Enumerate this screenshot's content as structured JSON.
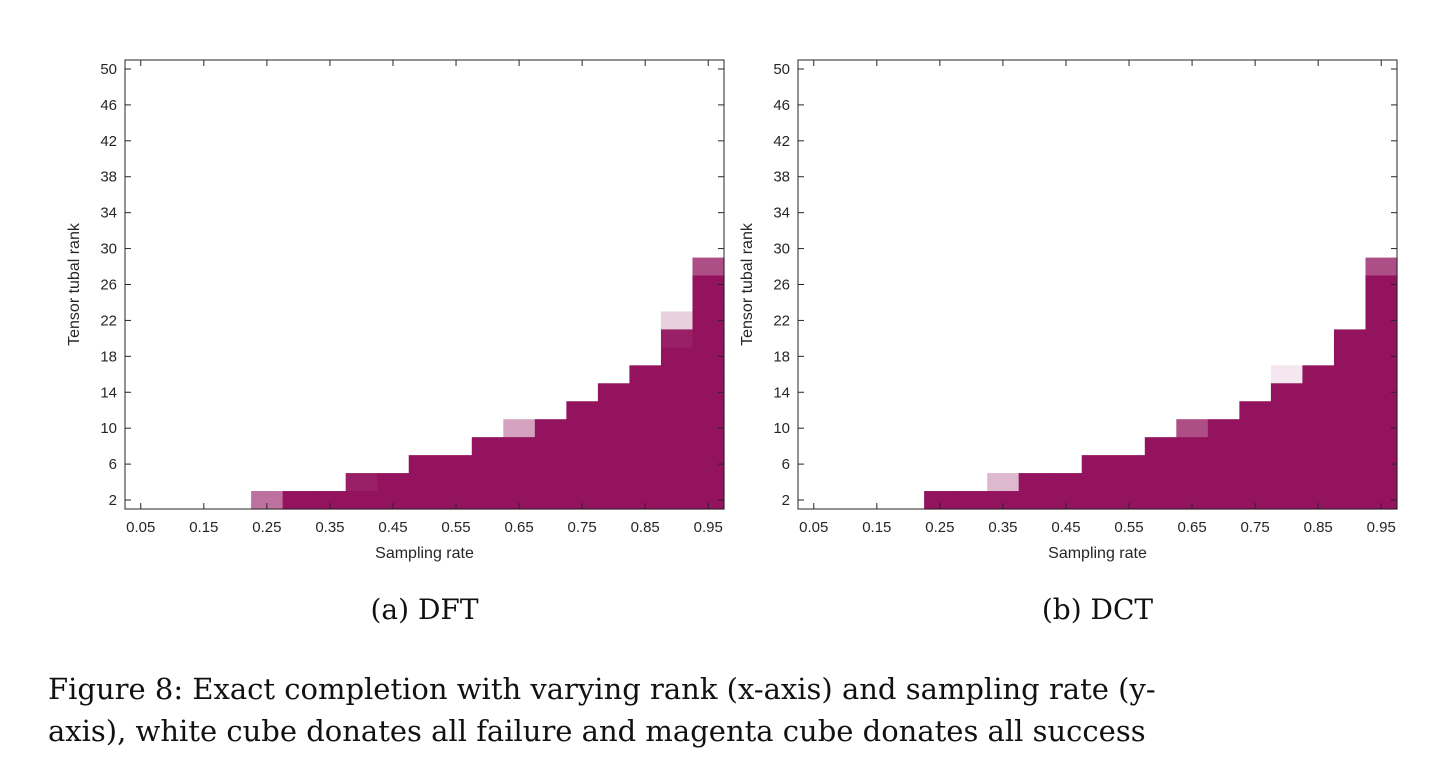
{
  "caption_lines": [
    "Figure 8: Exact completion with varying rank (x-axis) and sampling rate (y-",
    "axis), white cube donates all failure and magenta cube donates all success"
  ],
  "colors": {
    "success": "#93135f",
    "failure": "#ffffff",
    "axes": "#262626"
  },
  "chart_data": [
    {
      "type": "heatmap",
      "subcaption": "(a) DFT",
      "xlabel": "Sampling rate",
      "ylabel": "Tensor tubal rank",
      "x_ticks": [
        "0.05",
        "0.15",
        "0.25",
        "0.35",
        "0.45",
        "0.55",
        "0.65",
        "0.75",
        "0.85",
        "0.95"
      ],
      "y_ticks": [
        "2",
        "6",
        "10",
        "14",
        "18",
        "22",
        "26",
        "30",
        "34",
        "38",
        "42",
        "46",
        "50"
      ],
      "x": [
        0.05,
        0.1,
        0.15,
        0.2,
        0.25,
        0.3,
        0.35,
        0.4,
        0.45,
        0.5,
        0.55,
        0.6,
        0.65,
        0.7,
        0.75,
        0.8,
        0.85,
        0.9,
        0.95
      ],
      "y_range": [
        1,
        51
      ],
      "y_cell": 2,
      "value_meaning": "fraction of successful recoveries",
      "cells": [
        {
          "x": 0.25,
          "y": 2,
          "value": 0.6
        },
        {
          "x": 0.3,
          "y": 2,
          "value": 1
        },
        {
          "x": 0.35,
          "y": 2,
          "value": 1
        },
        {
          "x": 0.4,
          "y": 2,
          "value": 1
        },
        {
          "x": 0.4,
          "y": 4,
          "value": 0.95
        },
        {
          "x": 0.45,
          "y": 2,
          "value": 1
        },
        {
          "x": 0.45,
          "y": 4,
          "value": 1
        },
        {
          "x": 0.5,
          "y": 2,
          "value": 1
        },
        {
          "x": 0.5,
          "y": 4,
          "value": 1
        },
        {
          "x": 0.5,
          "y": 6,
          "value": 1
        },
        {
          "x": 0.55,
          "y": 2,
          "value": 1
        },
        {
          "x": 0.55,
          "y": 4,
          "value": 1
        },
        {
          "x": 0.55,
          "y": 6,
          "value": 1
        },
        {
          "x": 0.6,
          "y": 2,
          "value": 1
        },
        {
          "x": 0.6,
          "y": 4,
          "value": 1
        },
        {
          "x": 0.6,
          "y": 6,
          "value": 1
        },
        {
          "x": 0.6,
          "y": 8,
          "value": 1
        },
        {
          "x": 0.65,
          "y": 2,
          "value": 1
        },
        {
          "x": 0.65,
          "y": 4,
          "value": 1
        },
        {
          "x": 0.65,
          "y": 6,
          "value": 1
        },
        {
          "x": 0.65,
          "y": 8,
          "value": 1
        },
        {
          "x": 0.65,
          "y": 10,
          "value": 0.4
        },
        {
          "x": 0.7,
          "y": 2,
          "value": 1
        },
        {
          "x": 0.7,
          "y": 4,
          "value": 1
        },
        {
          "x": 0.7,
          "y": 6,
          "value": 1
        },
        {
          "x": 0.7,
          "y": 8,
          "value": 1
        },
        {
          "x": 0.7,
          "y": 10,
          "value": 1
        },
        {
          "x": 0.75,
          "y": 2,
          "value": 1
        },
        {
          "x": 0.75,
          "y": 4,
          "value": 1
        },
        {
          "x": 0.75,
          "y": 6,
          "value": 1
        },
        {
          "x": 0.75,
          "y": 8,
          "value": 1
        },
        {
          "x": 0.75,
          "y": 10,
          "value": 1
        },
        {
          "x": 0.75,
          "y": 12,
          "value": 1
        },
        {
          "x": 0.8,
          "y": 2,
          "value": 1
        },
        {
          "x": 0.8,
          "y": 4,
          "value": 1
        },
        {
          "x": 0.8,
          "y": 6,
          "value": 1
        },
        {
          "x": 0.8,
          "y": 8,
          "value": 1
        },
        {
          "x": 0.8,
          "y": 10,
          "value": 1
        },
        {
          "x": 0.8,
          "y": 12,
          "value": 1
        },
        {
          "x": 0.8,
          "y": 14,
          "value": 1
        },
        {
          "x": 0.85,
          "y": 2,
          "value": 1
        },
        {
          "x": 0.85,
          "y": 4,
          "value": 1
        },
        {
          "x": 0.85,
          "y": 6,
          "value": 1
        },
        {
          "x": 0.85,
          "y": 8,
          "value": 1
        },
        {
          "x": 0.85,
          "y": 10,
          "value": 1
        },
        {
          "x": 0.85,
          "y": 12,
          "value": 1
        },
        {
          "x": 0.85,
          "y": 14,
          "value": 1
        },
        {
          "x": 0.85,
          "y": 16,
          "value": 1
        },
        {
          "x": 0.9,
          "y": 2,
          "value": 1
        },
        {
          "x": 0.9,
          "y": 4,
          "value": 1
        },
        {
          "x": 0.9,
          "y": 6,
          "value": 1
        },
        {
          "x": 0.9,
          "y": 8,
          "value": 1
        },
        {
          "x": 0.9,
          "y": 10,
          "value": 1
        },
        {
          "x": 0.9,
          "y": 12,
          "value": 1
        },
        {
          "x": 0.9,
          "y": 14,
          "value": 1
        },
        {
          "x": 0.9,
          "y": 16,
          "value": 1
        },
        {
          "x": 0.9,
          "y": 18,
          "value": 1
        },
        {
          "x": 0.9,
          "y": 20,
          "value": 0.95
        },
        {
          "x": 0.9,
          "y": 22,
          "value": 0.2
        },
        {
          "x": 0.95,
          "y": 2,
          "value": 1
        },
        {
          "x": 0.95,
          "y": 4,
          "value": 1
        },
        {
          "x": 0.95,
          "y": 6,
          "value": 1
        },
        {
          "x": 0.95,
          "y": 8,
          "value": 1
        },
        {
          "x": 0.95,
          "y": 10,
          "value": 1
        },
        {
          "x": 0.95,
          "y": 12,
          "value": 1
        },
        {
          "x": 0.95,
          "y": 14,
          "value": 1
        },
        {
          "x": 0.95,
          "y": 16,
          "value": 1
        },
        {
          "x": 0.95,
          "y": 18,
          "value": 1
        },
        {
          "x": 0.95,
          "y": 20,
          "value": 1
        },
        {
          "x": 0.95,
          "y": 22,
          "value": 1
        },
        {
          "x": 0.95,
          "y": 24,
          "value": 1
        },
        {
          "x": 0.95,
          "y": 26,
          "value": 1
        },
        {
          "x": 0.95,
          "y": 28,
          "value": 0.75
        }
      ]
    },
    {
      "type": "heatmap",
      "subcaption": "(b) DCT",
      "xlabel": "Sampling rate",
      "ylabel": "Tensor tubal rank",
      "x_ticks": [
        "0.05",
        "0.15",
        "0.25",
        "0.35",
        "0.45",
        "0.55",
        "0.65",
        "0.75",
        "0.85",
        "0.95"
      ],
      "y_ticks": [
        "2",
        "6",
        "10",
        "14",
        "18",
        "22",
        "26",
        "30",
        "34",
        "38",
        "42",
        "46",
        "50"
      ],
      "x": [
        0.05,
        0.1,
        0.15,
        0.2,
        0.25,
        0.3,
        0.35,
        0.4,
        0.45,
        0.5,
        0.55,
        0.6,
        0.65,
        0.7,
        0.75,
        0.8,
        0.85,
        0.9,
        0.95
      ],
      "y_range": [
        1,
        51
      ],
      "y_cell": 2,
      "value_meaning": "fraction of successful recoveries",
      "cells": [
        {
          "x": 0.25,
          "y": 2,
          "value": 1
        },
        {
          "x": 0.3,
          "y": 2,
          "value": 1
        },
        {
          "x": 0.35,
          "y": 2,
          "value": 1
        },
        {
          "x": 0.35,
          "y": 4,
          "value": 0.3
        },
        {
          "x": 0.4,
          "y": 2,
          "value": 1
        },
        {
          "x": 0.4,
          "y": 4,
          "value": 1
        },
        {
          "x": 0.45,
          "y": 2,
          "value": 1
        },
        {
          "x": 0.45,
          "y": 4,
          "value": 1
        },
        {
          "x": 0.5,
          "y": 2,
          "value": 1
        },
        {
          "x": 0.5,
          "y": 4,
          "value": 1
        },
        {
          "x": 0.5,
          "y": 6,
          "value": 1
        },
        {
          "x": 0.55,
          "y": 2,
          "value": 1
        },
        {
          "x": 0.55,
          "y": 4,
          "value": 1
        },
        {
          "x": 0.55,
          "y": 6,
          "value": 1
        },
        {
          "x": 0.6,
          "y": 2,
          "value": 1
        },
        {
          "x": 0.6,
          "y": 4,
          "value": 1
        },
        {
          "x": 0.6,
          "y": 6,
          "value": 1
        },
        {
          "x": 0.6,
          "y": 8,
          "value": 1
        },
        {
          "x": 0.65,
          "y": 2,
          "value": 1
        },
        {
          "x": 0.65,
          "y": 4,
          "value": 1
        },
        {
          "x": 0.65,
          "y": 6,
          "value": 1
        },
        {
          "x": 0.65,
          "y": 8,
          "value": 1
        },
        {
          "x": 0.65,
          "y": 10,
          "value": 0.75
        },
        {
          "x": 0.7,
          "y": 2,
          "value": 1
        },
        {
          "x": 0.7,
          "y": 4,
          "value": 1
        },
        {
          "x": 0.7,
          "y": 6,
          "value": 1
        },
        {
          "x": 0.7,
          "y": 8,
          "value": 1
        },
        {
          "x": 0.7,
          "y": 10,
          "value": 1
        },
        {
          "x": 0.75,
          "y": 2,
          "value": 1
        },
        {
          "x": 0.75,
          "y": 4,
          "value": 1
        },
        {
          "x": 0.75,
          "y": 6,
          "value": 1
        },
        {
          "x": 0.75,
          "y": 8,
          "value": 1
        },
        {
          "x": 0.75,
          "y": 10,
          "value": 1
        },
        {
          "x": 0.75,
          "y": 12,
          "value": 1
        },
        {
          "x": 0.8,
          "y": 2,
          "value": 1
        },
        {
          "x": 0.8,
          "y": 4,
          "value": 1
        },
        {
          "x": 0.8,
          "y": 6,
          "value": 1
        },
        {
          "x": 0.8,
          "y": 8,
          "value": 1
        },
        {
          "x": 0.8,
          "y": 10,
          "value": 1
        },
        {
          "x": 0.8,
          "y": 12,
          "value": 1
        },
        {
          "x": 0.8,
          "y": 14,
          "value": 1
        },
        {
          "x": 0.8,
          "y": 16,
          "value": 0.1
        },
        {
          "x": 0.85,
          "y": 2,
          "value": 1
        },
        {
          "x": 0.85,
          "y": 4,
          "value": 1
        },
        {
          "x": 0.85,
          "y": 6,
          "value": 1
        },
        {
          "x": 0.85,
          "y": 8,
          "value": 1
        },
        {
          "x": 0.85,
          "y": 10,
          "value": 1
        },
        {
          "x": 0.85,
          "y": 12,
          "value": 1
        },
        {
          "x": 0.85,
          "y": 14,
          "value": 1
        },
        {
          "x": 0.85,
          "y": 16,
          "value": 1
        },
        {
          "x": 0.9,
          "y": 2,
          "value": 1
        },
        {
          "x": 0.9,
          "y": 4,
          "value": 1
        },
        {
          "x": 0.9,
          "y": 6,
          "value": 1
        },
        {
          "x": 0.9,
          "y": 8,
          "value": 1
        },
        {
          "x": 0.9,
          "y": 10,
          "value": 1
        },
        {
          "x": 0.9,
          "y": 12,
          "value": 1
        },
        {
          "x": 0.9,
          "y": 14,
          "value": 1
        },
        {
          "x": 0.9,
          "y": 16,
          "value": 1
        },
        {
          "x": 0.9,
          "y": 18,
          "value": 1
        },
        {
          "x": 0.9,
          "y": 20,
          "value": 1
        },
        {
          "x": 0.95,
          "y": 2,
          "value": 1
        },
        {
          "x": 0.95,
          "y": 4,
          "value": 1
        },
        {
          "x": 0.95,
          "y": 6,
          "value": 1
        },
        {
          "x": 0.95,
          "y": 8,
          "value": 1
        },
        {
          "x": 0.95,
          "y": 10,
          "value": 1
        },
        {
          "x": 0.95,
          "y": 12,
          "value": 1
        },
        {
          "x": 0.95,
          "y": 14,
          "value": 1
        },
        {
          "x": 0.95,
          "y": 16,
          "value": 1
        },
        {
          "x": 0.95,
          "y": 18,
          "value": 1
        },
        {
          "x": 0.95,
          "y": 20,
          "value": 1
        },
        {
          "x": 0.95,
          "y": 22,
          "value": 1
        },
        {
          "x": 0.95,
          "y": 24,
          "value": 1
        },
        {
          "x": 0.95,
          "y": 26,
          "value": 1
        },
        {
          "x": 0.95,
          "y": 28,
          "value": 0.75
        }
      ]
    }
  ]
}
